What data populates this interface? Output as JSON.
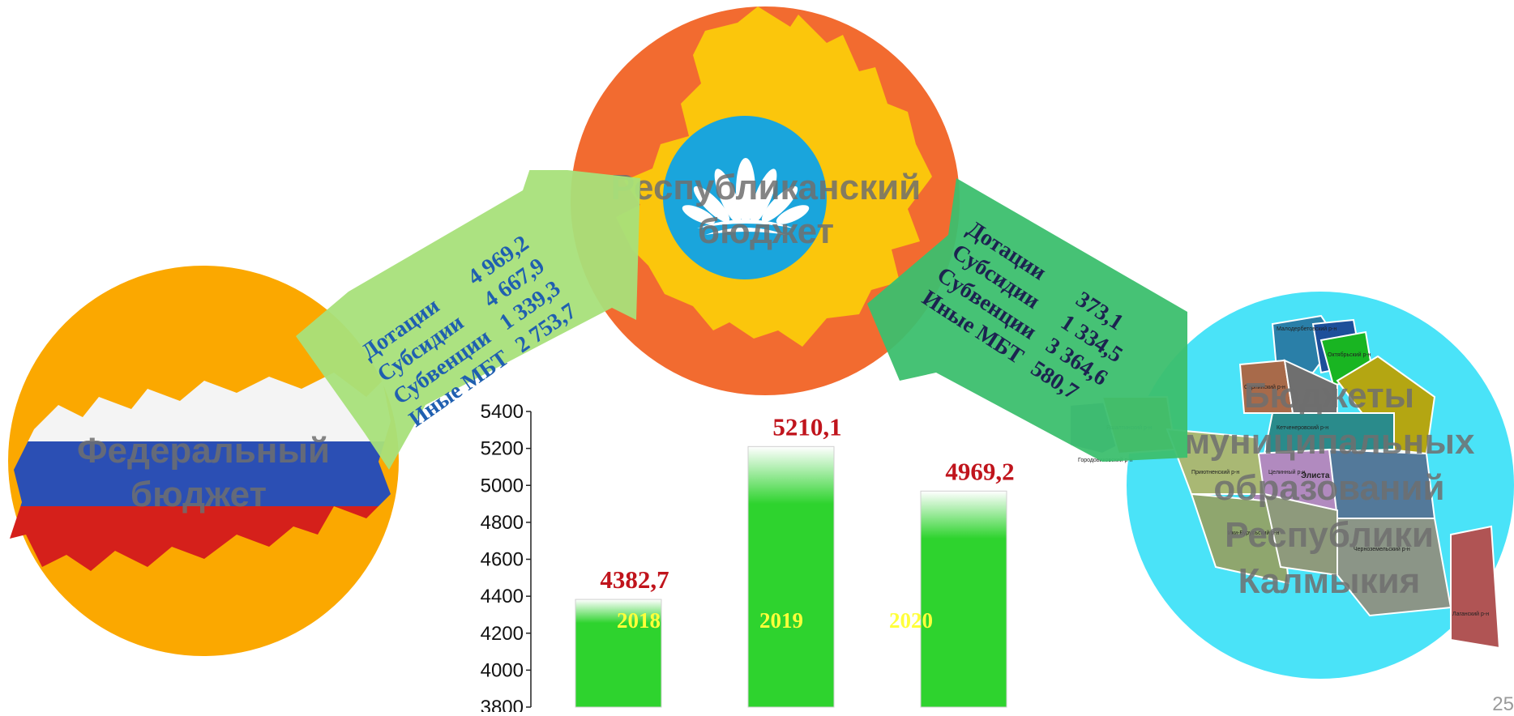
{
  "federal": {
    "title": "Федеральный бюджет"
  },
  "republic": {
    "title": "Республиканский бюджет"
  },
  "municipal": {
    "title": "Бюджеты муниципальных образований Республики Калмыкия"
  },
  "flow_in": {
    "rows": [
      {
        "label": "Дотации",
        "value": "4 969,2"
      },
      {
        "label": "Субсидии",
        "value": "4 667,9"
      },
      {
        "label": "Субвенции",
        "value": "1 339,3"
      },
      {
        "label": "Иные МБТ",
        "value": "2 753,7"
      }
    ]
  },
  "flow_out": {
    "rows": [
      {
        "label": "Дотации",
        "value": "373,1"
      },
      {
        "label": "Субсидии",
        "value": "1 334,5"
      },
      {
        "label": "Субвенции",
        "value": "3 364,6"
      },
      {
        "label": "Иные МБТ",
        "value": "580,7"
      }
    ]
  },
  "map_labels": [
    "Элиста",
    "Лаганский р-н",
    "Черноземельский р-н",
    "Целинный р-н",
    "Кетченеровский р-н",
    "Сарпинский р-н",
    "Октябрьский р-н",
    "Малодербетовский р-н",
    "Ики-Бурульский р-н",
    "Яшкульский р-н",
    "Городовиковский р-н",
    "Яшалтинский р-н",
    "Приютненский р-н"
  ],
  "chart_data": {
    "type": "bar",
    "categories": [
      "2018",
      "2019",
      "2020"
    ],
    "values": [
      4382.7,
      5210.1,
      4969.2
    ],
    "value_labels": [
      "4382,7",
      "5210,1",
      "4969,2"
    ],
    "category_label_colors": [
      "#ffff3a",
      "#ffff3a",
      "#ffff3a"
    ],
    "bar_color": "#2ed32e",
    "value_label_color": "#c0141c",
    "yticks": [
      "5400",
      "5200",
      "5000",
      "4800",
      "4600",
      "4400",
      "4200",
      "4000",
      "3800"
    ],
    "ylim": [
      3800,
      5400
    ]
  },
  "page_number": "25",
  "colors": {
    "federal_circle": "#fba800",
    "republic_circle": "#f26b30",
    "municipal_circle": "#4ae3f8",
    "arrow_in": "#a8e07a",
    "arrow_out": "#3cbf6e"
  }
}
